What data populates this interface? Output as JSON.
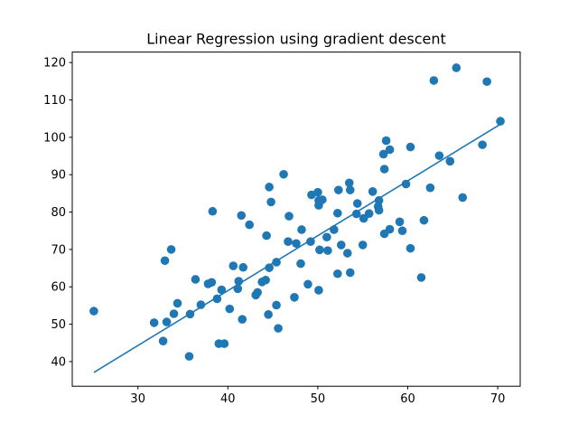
{
  "chart_data": {
    "type": "scatter",
    "title": "Linear Regression using gradient descent",
    "xlabel": "",
    "ylabel": "",
    "xlim": [
      22.7,
      72.5
    ],
    "ylim": [
      33.4,
      122.8
    ],
    "xticks": [
      30,
      40,
      50,
      60,
      70
    ],
    "yticks": [
      40,
      50,
      60,
      70,
      80,
      90,
      100,
      110,
      120
    ],
    "grid": false,
    "color": "#1f77b4",
    "points": [
      {
        "x": 25.1,
        "y": 53.5
      },
      {
        "x": 31.8,
        "y": 50.4
      },
      {
        "x": 32.8,
        "y": 45.5
      },
      {
        "x": 33.0,
        "y": 67.0
      },
      {
        "x": 33.2,
        "y": 50.6
      },
      {
        "x": 33.7,
        "y": 70.0
      },
      {
        "x": 34.0,
        "y": 52.8
      },
      {
        "x": 34.4,
        "y": 55.6
      },
      {
        "x": 35.7,
        "y": 41.4
      },
      {
        "x": 35.8,
        "y": 52.7
      },
      {
        "x": 36.4,
        "y": 62.0
      },
      {
        "x": 37.0,
        "y": 55.2
      },
      {
        "x": 37.8,
        "y": 60.8
      },
      {
        "x": 38.2,
        "y": 61.2
      },
      {
        "x": 38.3,
        "y": 80.2
      },
      {
        "x": 38.8,
        "y": 56.8
      },
      {
        "x": 39.0,
        "y": 44.8
      },
      {
        "x": 39.3,
        "y": 59.2
      },
      {
        "x": 39.6,
        "y": 44.8
      },
      {
        "x": 40.2,
        "y": 54.1
      },
      {
        "x": 40.6,
        "y": 65.6
      },
      {
        "x": 41.1,
        "y": 59.5
      },
      {
        "x": 41.2,
        "y": 61.5
      },
      {
        "x": 41.5,
        "y": 79.1
      },
      {
        "x": 41.6,
        "y": 51.3
      },
      {
        "x": 41.7,
        "y": 65.2
      },
      {
        "x": 42.4,
        "y": 76.6
      },
      {
        "x": 43.1,
        "y": 57.8
      },
      {
        "x": 43.3,
        "y": 58.5
      },
      {
        "x": 43.8,
        "y": 61.3
      },
      {
        "x": 44.2,
        "y": 61.8
      },
      {
        "x": 44.3,
        "y": 73.7
      },
      {
        "x": 44.5,
        "y": 52.6
      },
      {
        "x": 44.6,
        "y": 65.1
      },
      {
        "x": 44.6,
        "y": 86.7
      },
      {
        "x": 44.8,
        "y": 82.7
      },
      {
        "x": 45.4,
        "y": 66.6
      },
      {
        "x": 45.4,
        "y": 55.1
      },
      {
        "x": 45.6,
        "y": 48.9
      },
      {
        "x": 46.2,
        "y": 90.1
      },
      {
        "x": 46.7,
        "y": 72.1
      },
      {
        "x": 46.8,
        "y": 78.9
      },
      {
        "x": 47.4,
        "y": 57.2
      },
      {
        "x": 47.6,
        "y": 71.6
      },
      {
        "x": 48.1,
        "y": 66.2
      },
      {
        "x": 48.2,
        "y": 75.3
      },
      {
        "x": 48.9,
        "y": 60.7
      },
      {
        "x": 49.2,
        "y": 72.1
      },
      {
        "x": 49.3,
        "y": 84.6
      },
      {
        "x": 50.0,
        "y": 85.3
      },
      {
        "x": 50.1,
        "y": 83.1
      },
      {
        "x": 50.1,
        "y": 81.8
      },
      {
        "x": 50.1,
        "y": 59.1
      },
      {
        "x": 50.2,
        "y": 69.9
      },
      {
        "x": 50.5,
        "y": 83.3
      },
      {
        "x": 51.0,
        "y": 73.3
      },
      {
        "x": 51.1,
        "y": 69.7
      },
      {
        "x": 51.8,
        "y": 75.3
      },
      {
        "x": 52.2,
        "y": 63.5
      },
      {
        "x": 52.2,
        "y": 79.7
      },
      {
        "x": 52.3,
        "y": 85.9
      },
      {
        "x": 52.6,
        "y": 71.2
      },
      {
        "x": 53.3,
        "y": 69.0
      },
      {
        "x": 53.5,
        "y": 87.8
      },
      {
        "x": 53.6,
        "y": 63.8
      },
      {
        "x": 53.6,
        "y": 85.9
      },
      {
        "x": 54.3,
        "y": 79.5
      },
      {
        "x": 54.4,
        "y": 82.3
      },
      {
        "x": 55.0,
        "y": 71.2
      },
      {
        "x": 55.1,
        "y": 78.3
      },
      {
        "x": 55.7,
        "y": 79.6
      },
      {
        "x": 56.1,
        "y": 85.5
      },
      {
        "x": 56.7,
        "y": 81.5
      },
      {
        "x": 56.8,
        "y": 80.5
      },
      {
        "x": 56.8,
        "y": 83.1
      },
      {
        "x": 57.3,
        "y": 95.5
      },
      {
        "x": 57.4,
        "y": 91.5
      },
      {
        "x": 57.4,
        "y": 74.2
      },
      {
        "x": 57.6,
        "y": 99.1
      },
      {
        "x": 58.0,
        "y": 75.4
      },
      {
        "x": 58.0,
        "y": 96.7
      },
      {
        "x": 59.1,
        "y": 77.4
      },
      {
        "x": 59.4,
        "y": 75.0
      },
      {
        "x": 59.8,
        "y": 87.5
      },
      {
        "x": 60.3,
        "y": 97.4
      },
      {
        "x": 60.3,
        "y": 70.3
      },
      {
        "x": 61.5,
        "y": 62.5
      },
      {
        "x": 61.8,
        "y": 77.8
      },
      {
        "x": 62.5,
        "y": 86.5
      },
      {
        "x": 62.9,
        "y": 115.2
      },
      {
        "x": 63.5,
        "y": 95.1
      },
      {
        "x": 64.7,
        "y": 93.6
      },
      {
        "x": 65.4,
        "y": 118.6
      },
      {
        "x": 66.1,
        "y": 83.9
      },
      {
        "x": 68.3,
        "y": 98.0
      },
      {
        "x": 68.8,
        "y": 114.9
      },
      {
        "x": 70.3,
        "y": 104.3
      }
    ],
    "regression_line": {
      "x": [
        25.1,
        70.3
      ],
      "y": [
        37.1,
        103.5
      ]
    }
  }
}
